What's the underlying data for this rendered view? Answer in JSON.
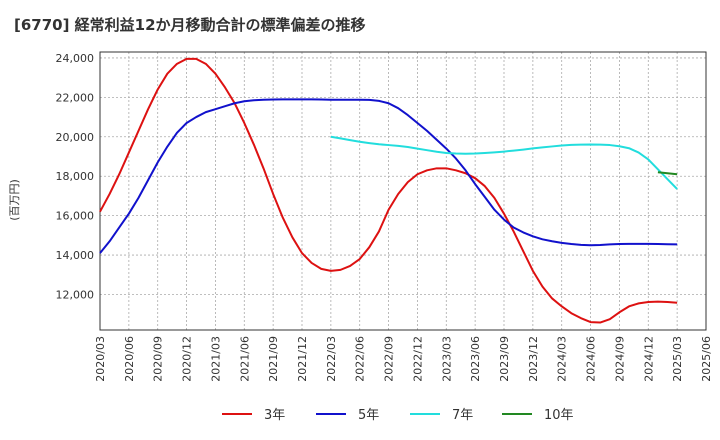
{
  "chart_data": {
    "type": "line",
    "title": "[6770]  経常利益12か月移動合計の標準偏差の推移",
    "ylabel": "(百万円)",
    "xlabel": "",
    "ylim": [
      10200,
      24300
    ],
    "yticks": [
      12000,
      14000,
      16000,
      18000,
      20000,
      22000,
      24000
    ],
    "ytick_labels": [
      "12,000",
      "14,000",
      "16,000",
      "18,000",
      "20,000",
      "22,000",
      "24,000"
    ],
    "xticks": [
      "2020/03",
      "2020/06",
      "2020/09",
      "2020/12",
      "2021/03",
      "2021/06",
      "2021/09",
      "2021/12",
      "2022/03",
      "2022/06",
      "2022/09",
      "2022/12",
      "2023/03",
      "2023/06",
      "2023/09",
      "2023/12",
      "2024/03",
      "2024/06",
      "2024/09",
      "2024/12",
      "2025/03",
      "2025/06"
    ],
    "grid": true,
    "legend_position": "bottom",
    "series": [
      {
        "name": "3年",
        "color": "#dd1111",
        "x": [
          "2020/03",
          "2020/04",
          "2020/05",
          "2020/06",
          "2020/07",
          "2020/08",
          "2020/09",
          "2020/10",
          "2020/11",
          "2020/12",
          "2021/01",
          "2021/02",
          "2021/03",
          "2021/04",
          "2021/05",
          "2021/06",
          "2021/07",
          "2021/08",
          "2021/09",
          "2021/10",
          "2021/11",
          "2021/12",
          "2022/01",
          "2022/02",
          "2022/03",
          "2022/04",
          "2022/05",
          "2022/06",
          "2022/07",
          "2022/08",
          "2022/09",
          "2022/10",
          "2022/11",
          "2022/12",
          "2023/01",
          "2023/02",
          "2023/03",
          "2023/04",
          "2023/05",
          "2023/06",
          "2023/07",
          "2023/08",
          "2023/09",
          "2023/10",
          "2023/11",
          "2023/12",
          "2024/01",
          "2024/02",
          "2024/03",
          "2024/04",
          "2024/05",
          "2024/06",
          "2024/07",
          "2024/08",
          "2024/09",
          "2024/10",
          "2024/11",
          "2024/12",
          "2025/01",
          "2025/02",
          "2025/03"
        ],
        "values": [
          16200,
          17100,
          18100,
          19200,
          20300,
          21400,
          22400,
          23200,
          23700,
          23950,
          23950,
          23700,
          23200,
          22500,
          21700,
          20700,
          19600,
          18400,
          17100,
          15900,
          14900,
          14100,
          13600,
          13300,
          13200,
          13250,
          13450,
          13800,
          14400,
          15200,
          16300,
          17100,
          17700,
          18100,
          18300,
          18400,
          18400,
          18300,
          18150,
          17900,
          17500,
          16900,
          16100,
          15200,
          14200,
          13200,
          12400,
          11800,
          11400,
          11050,
          10800,
          10600,
          10580,
          10750,
          11100,
          11400,
          11550,
          11620,
          11640,
          11620,
          11580
        ]
      },
      {
        "name": "5年",
        "color": "#1111cc",
        "x": [
          "2020/03",
          "2020/04",
          "2020/05",
          "2020/06",
          "2020/07",
          "2020/08",
          "2020/09",
          "2020/10",
          "2020/11",
          "2020/12",
          "2021/01",
          "2021/02",
          "2021/03",
          "2021/04",
          "2021/05",
          "2021/06",
          "2021/07",
          "2021/08",
          "2021/09",
          "2021/10",
          "2021/11",
          "2021/12",
          "2022/01",
          "2022/02",
          "2022/03",
          "2022/04",
          "2022/05",
          "2022/06",
          "2022/07",
          "2022/08",
          "2022/09",
          "2022/10",
          "2022/11",
          "2022/12",
          "2023/01",
          "2023/02",
          "2023/03",
          "2023/04",
          "2023/05",
          "2023/06",
          "2023/07",
          "2023/08",
          "2023/09",
          "2023/10",
          "2023/11",
          "2023/12",
          "2024/01",
          "2024/02",
          "2024/03",
          "2024/04",
          "2024/05",
          "2024/06",
          "2024/07",
          "2024/08",
          "2024/09",
          "2024/10",
          "2024/11",
          "2024/12",
          "2025/01",
          "2025/02",
          "2025/03"
        ],
        "values": [
          14100,
          14700,
          15400,
          16100,
          16900,
          17800,
          18700,
          19500,
          20200,
          20700,
          21000,
          21250,
          21400,
          21550,
          21700,
          21800,
          21850,
          21880,
          21890,
          21900,
          21900,
          21900,
          21900,
          21890,
          21880,
          21880,
          21880,
          21880,
          21870,
          21820,
          21700,
          21450,
          21100,
          20700,
          20300,
          19850,
          19400,
          18900,
          18300,
          17600,
          16950,
          16300,
          15800,
          15400,
          15150,
          14950,
          14800,
          14700,
          14620,
          14560,
          14520,
          14500,
          14510,
          14540,
          14560,
          14570,
          14570,
          14570,
          14560,
          14550,
          14540
        ]
      },
      {
        "name": "7年",
        "color": "#22dddd",
        "x": [
          "2022/03",
          "2022/04",
          "2022/05",
          "2022/06",
          "2022/07",
          "2022/08",
          "2022/09",
          "2022/10",
          "2022/11",
          "2022/12",
          "2023/01",
          "2023/02",
          "2023/03",
          "2023/04",
          "2023/05",
          "2023/06",
          "2023/07",
          "2023/08",
          "2023/09",
          "2023/10",
          "2023/11",
          "2023/12",
          "2024/01",
          "2024/02",
          "2024/03",
          "2024/04",
          "2024/05",
          "2024/06",
          "2024/07",
          "2024/08",
          "2024/09",
          "2024/10",
          "2024/11",
          "2024/12",
          "2025/01",
          "2025/02",
          "2025/03"
        ],
        "values": [
          20000,
          19920,
          19830,
          19750,
          19680,
          19620,
          19580,
          19540,
          19480,
          19400,
          19320,
          19240,
          19180,
          19150,
          19140,
          19150,
          19180,
          19210,
          19250,
          19300,
          19350,
          19410,
          19460,
          19510,
          19560,
          19590,
          19600,
          19610,
          19600,
          19580,
          19520,
          19420,
          19200,
          18850,
          18350,
          17850,
          17350
        ]
      },
      {
        "name": "10年",
        "color": "#228822",
        "x": [
          "2025/01",
          "2025/02",
          "2025/03"
        ],
        "values": [
          18200,
          18150,
          18100
        ]
      }
    ]
  }
}
